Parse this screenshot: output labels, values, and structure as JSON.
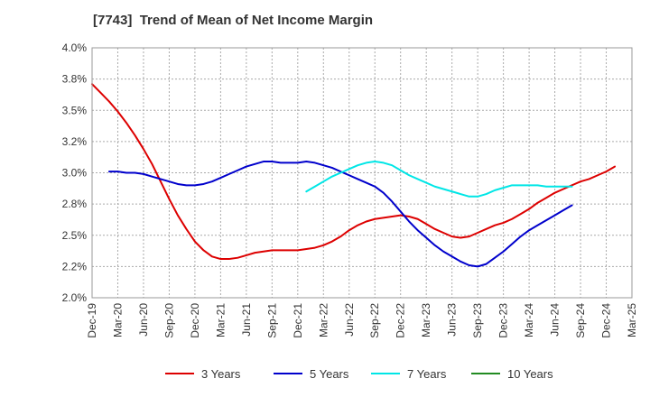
{
  "chart_data": {
    "type": "line",
    "title": "[7743]  Trend of Mean of Net Income Margin",
    "xlabel": "",
    "ylabel": "",
    "ylim": [
      2.0,
      4.0
    ],
    "yticks": [
      "4.0%",
      "3.8%",
      "3.5%",
      "3.2%",
      "3.0%",
      "2.8%",
      "2.5%",
      "2.2%",
      "2.0%"
    ],
    "xticks": [
      "Dec-19",
      "Mar-20",
      "Jun-20",
      "Sep-20",
      "Dec-20",
      "Mar-21",
      "Jun-21",
      "Sep-21",
      "Dec-21",
      "Mar-22",
      "Jun-22",
      "Sep-22",
      "Dec-22",
      "Mar-23",
      "Jun-23",
      "Sep-23",
      "Dec-23",
      "Mar-24",
      "Jun-24",
      "Sep-24",
      "Dec-24",
      "Mar-25"
    ],
    "grid": true,
    "legend_position": "bottom",
    "series": [
      {
        "name": "3 Years",
        "color": "#dd0000",
        "values": [
          3.71,
          3.64,
          3.57,
          3.49,
          3.4,
          3.3,
          3.19,
          3.07,
          2.93,
          2.79,
          2.66,
          2.55,
          2.45,
          2.38,
          2.33,
          2.31,
          2.31,
          2.32,
          2.34,
          2.36,
          2.37,
          2.38,
          2.38,
          2.38,
          2.38,
          2.39,
          2.4,
          2.42,
          2.45,
          2.49,
          2.54,
          2.58,
          2.61,
          2.63,
          2.64,
          2.65,
          2.66,
          2.65,
          2.63,
          2.59,
          2.55,
          2.52,
          2.49,
          2.48,
          2.49,
          2.52,
          2.55,
          2.58,
          2.6,
          2.63,
          2.67,
          2.71,
          2.76,
          2.8,
          2.84,
          2.87,
          2.9,
          2.93,
          2.95,
          2.98,
          3.01,
          3.05
        ]
      },
      {
        "name": "5 Years",
        "color": "#0000cc",
        "values": [
          null,
          null,
          3.01,
          3.01,
          3.0,
          3.0,
          2.99,
          2.97,
          2.95,
          2.93,
          2.91,
          2.9,
          2.9,
          2.91,
          2.93,
          2.96,
          2.99,
          3.02,
          3.05,
          3.07,
          3.09,
          3.09,
          3.08,
          3.08,
          3.08,
          3.09,
          3.08,
          3.06,
          3.04,
          3.01,
          2.98,
          2.95,
          2.92,
          2.89,
          2.84,
          2.77,
          2.69,
          2.61,
          2.54,
          2.48,
          2.42,
          2.37,
          2.33,
          2.29,
          2.26,
          2.25,
          2.27,
          2.32,
          2.37,
          2.43,
          2.49,
          2.54,
          2.58,
          2.62,
          2.66,
          2.7,
          2.74
        ]
      },
      {
        "name": "7 Years",
        "color": "#00e6e6",
        "values": [
          null,
          null,
          null,
          null,
          null,
          null,
          null,
          null,
          null,
          null,
          null,
          null,
          null,
          null,
          null,
          null,
          null,
          null,
          null,
          null,
          null,
          null,
          null,
          null,
          null,
          2.85,
          2.89,
          2.93,
          2.97,
          3.0,
          3.03,
          3.06,
          3.08,
          3.09,
          3.08,
          3.06,
          3.02,
          2.98,
          2.95,
          2.92,
          2.89,
          2.87,
          2.85,
          2.83,
          2.81,
          2.81,
          2.83,
          2.86,
          2.88,
          2.9,
          2.9,
          2.9,
          2.9,
          2.89,
          2.89,
          2.89,
          2.89
        ]
      },
      {
        "name": "10 Years",
        "color": "#228b22",
        "values": []
      }
    ]
  }
}
